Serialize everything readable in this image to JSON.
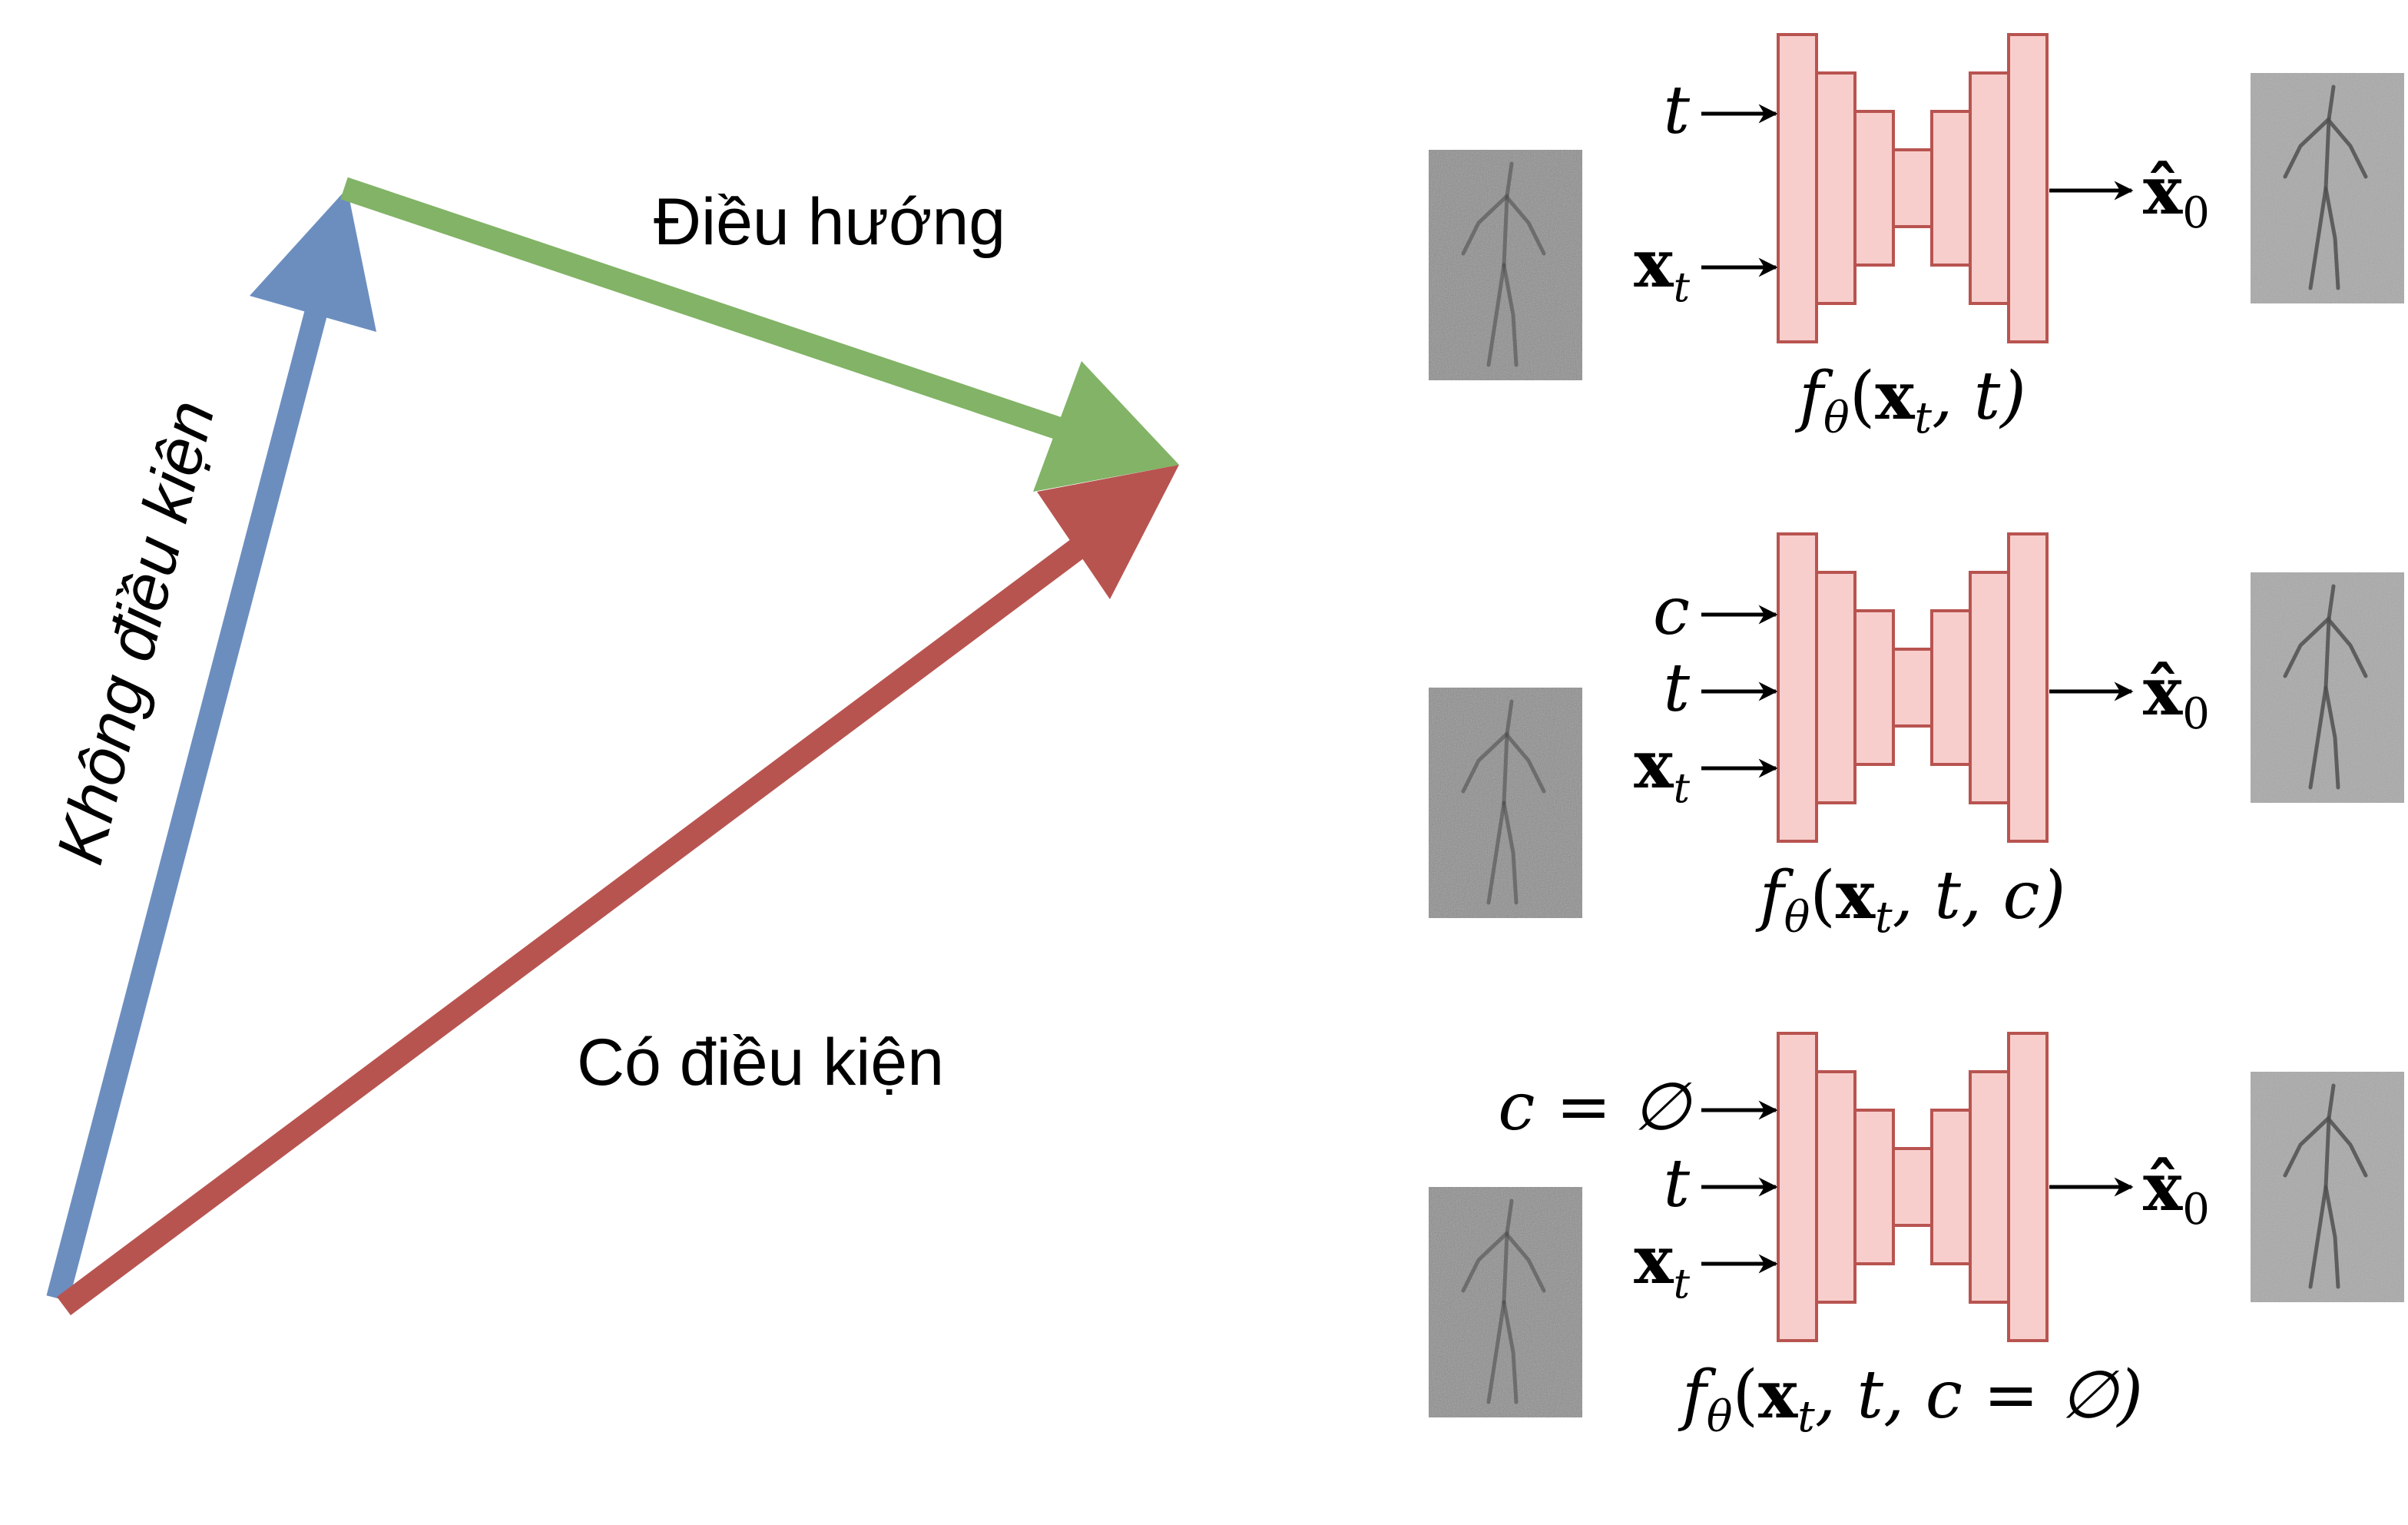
{
  "labels": {
    "unconditional": "Không điều kiện",
    "guidance": "Điều hướng",
    "conditional": "Có điều kiện"
  },
  "colors": {
    "unconditional": "#6c8ebf",
    "guidance": "#82b366",
    "conditional": "#b85450",
    "unet_fill": "#f8cecc",
    "unet_stroke": "#b85450",
    "noise_bg": "#8c8c8c"
  },
  "networks": [
    {
      "inputs": [
        {
          "symbol": "t",
          "sub": ""
        },
        {
          "symbol": "x",
          "sub": "t"
        }
      ],
      "output": {
        "symbol": "x̂",
        "sub": "0"
      },
      "function": {
        "head": "f",
        "head_sub": "θ",
        "open": "(",
        "x": "x",
        "x_sub": "t",
        "rest": ", t)"
      }
    },
    {
      "inputs": [
        {
          "symbol": "c",
          "sub": ""
        },
        {
          "symbol": "t",
          "sub": ""
        },
        {
          "symbol": "x",
          "sub": "t"
        }
      ],
      "output": {
        "symbol": "x̂",
        "sub": "0"
      },
      "function": {
        "head": "f",
        "head_sub": "θ",
        "open": "(",
        "x": "x",
        "x_sub": "t",
        "rest": ", t, c)"
      }
    },
    {
      "inputs": [
        {
          "symbol": "c = ∅",
          "sub": ""
        },
        {
          "symbol": "t",
          "sub": ""
        },
        {
          "symbol": "x",
          "sub": "t"
        }
      ],
      "output": {
        "symbol": "x̂",
        "sub": "0"
      },
      "function": {
        "head": "f",
        "head_sub": "θ",
        "open": "(",
        "x": "x",
        "x_sub": "t",
        "rest": ", t, c = ∅)"
      }
    }
  ]
}
